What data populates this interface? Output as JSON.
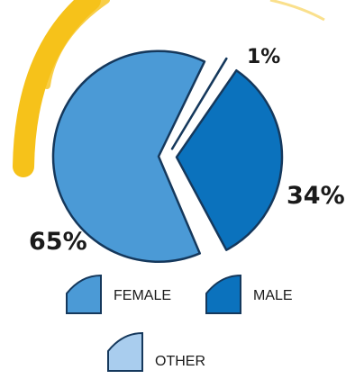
{
  "chart_data": {
    "type": "pie",
    "slices": [
      {
        "label": "FEMALE",
        "value": 65,
        "value_label": "65%",
        "color": "#4b9ad6"
      },
      {
        "label": "MALE",
        "value": 34,
        "value_label": "34%",
        "color": "#0b72bd"
      },
      {
        "label": "OTHER",
        "value": 1,
        "value_label": "1%",
        "color": "#a9cdee"
      }
    ],
    "exploded": true,
    "decoration_color": "#f6c21a",
    "outline_color": "#15385c"
  }
}
